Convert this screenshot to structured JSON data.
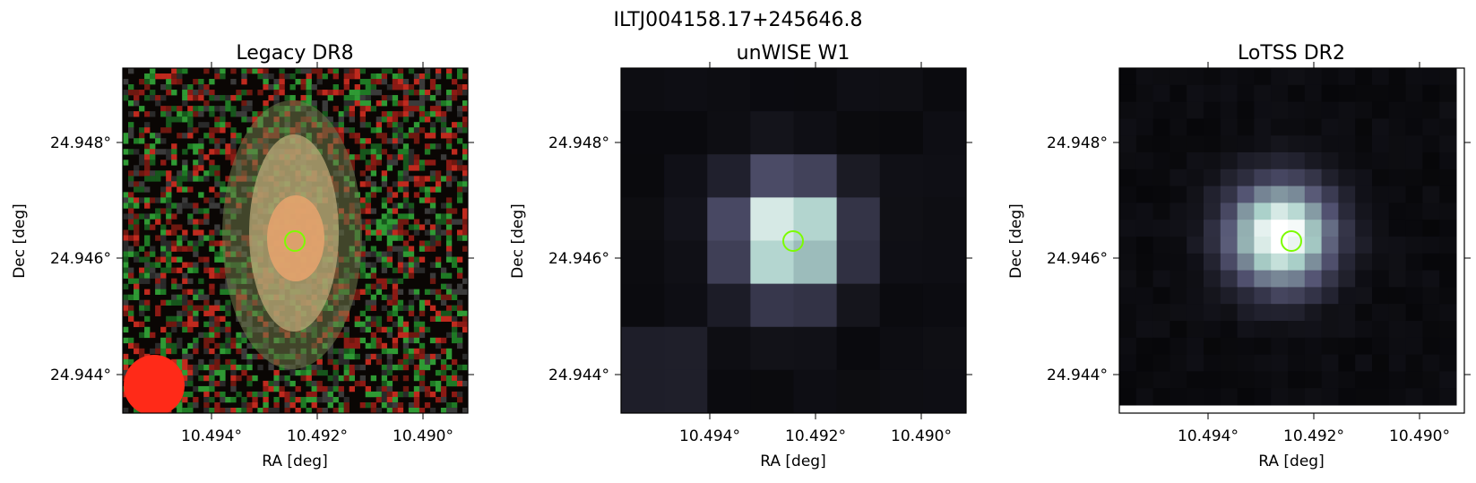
{
  "figure": {
    "suptitle": "ILTJ004158.17+245646.8"
  },
  "panels": [
    {
      "id": "legacy",
      "title": "Legacy DR8",
      "xlabel": "RA [deg]",
      "ylabel": "Dec [deg]",
      "xticks": [
        "10.494°",
        "10.492°",
        "10.490°"
      ],
      "yticks": [
        "24.948°",
        "24.946°",
        "24.944°"
      ],
      "marker_color": "#7cfc00"
    },
    {
      "id": "unwise",
      "title": "unWISE W1",
      "xlabel": "RA [deg]",
      "ylabel": "Dec [deg]",
      "xticks": [
        "10.494°",
        "10.492°",
        "10.490°"
      ],
      "yticks": [
        "24.948°",
        "24.946°",
        "24.944°"
      ],
      "marker_color": "#7cfc00"
    },
    {
      "id": "lotss",
      "title": "LoTSS DR2",
      "xlabel": "RA [deg]",
      "ylabel": "Dec [deg]",
      "xticks": [
        "10.494°",
        "10.492°",
        "10.490°"
      ],
      "yticks": [
        "24.948°",
        "24.946°",
        "24.944°"
      ],
      "marker_color": "#7cfc00"
    }
  ]
}
